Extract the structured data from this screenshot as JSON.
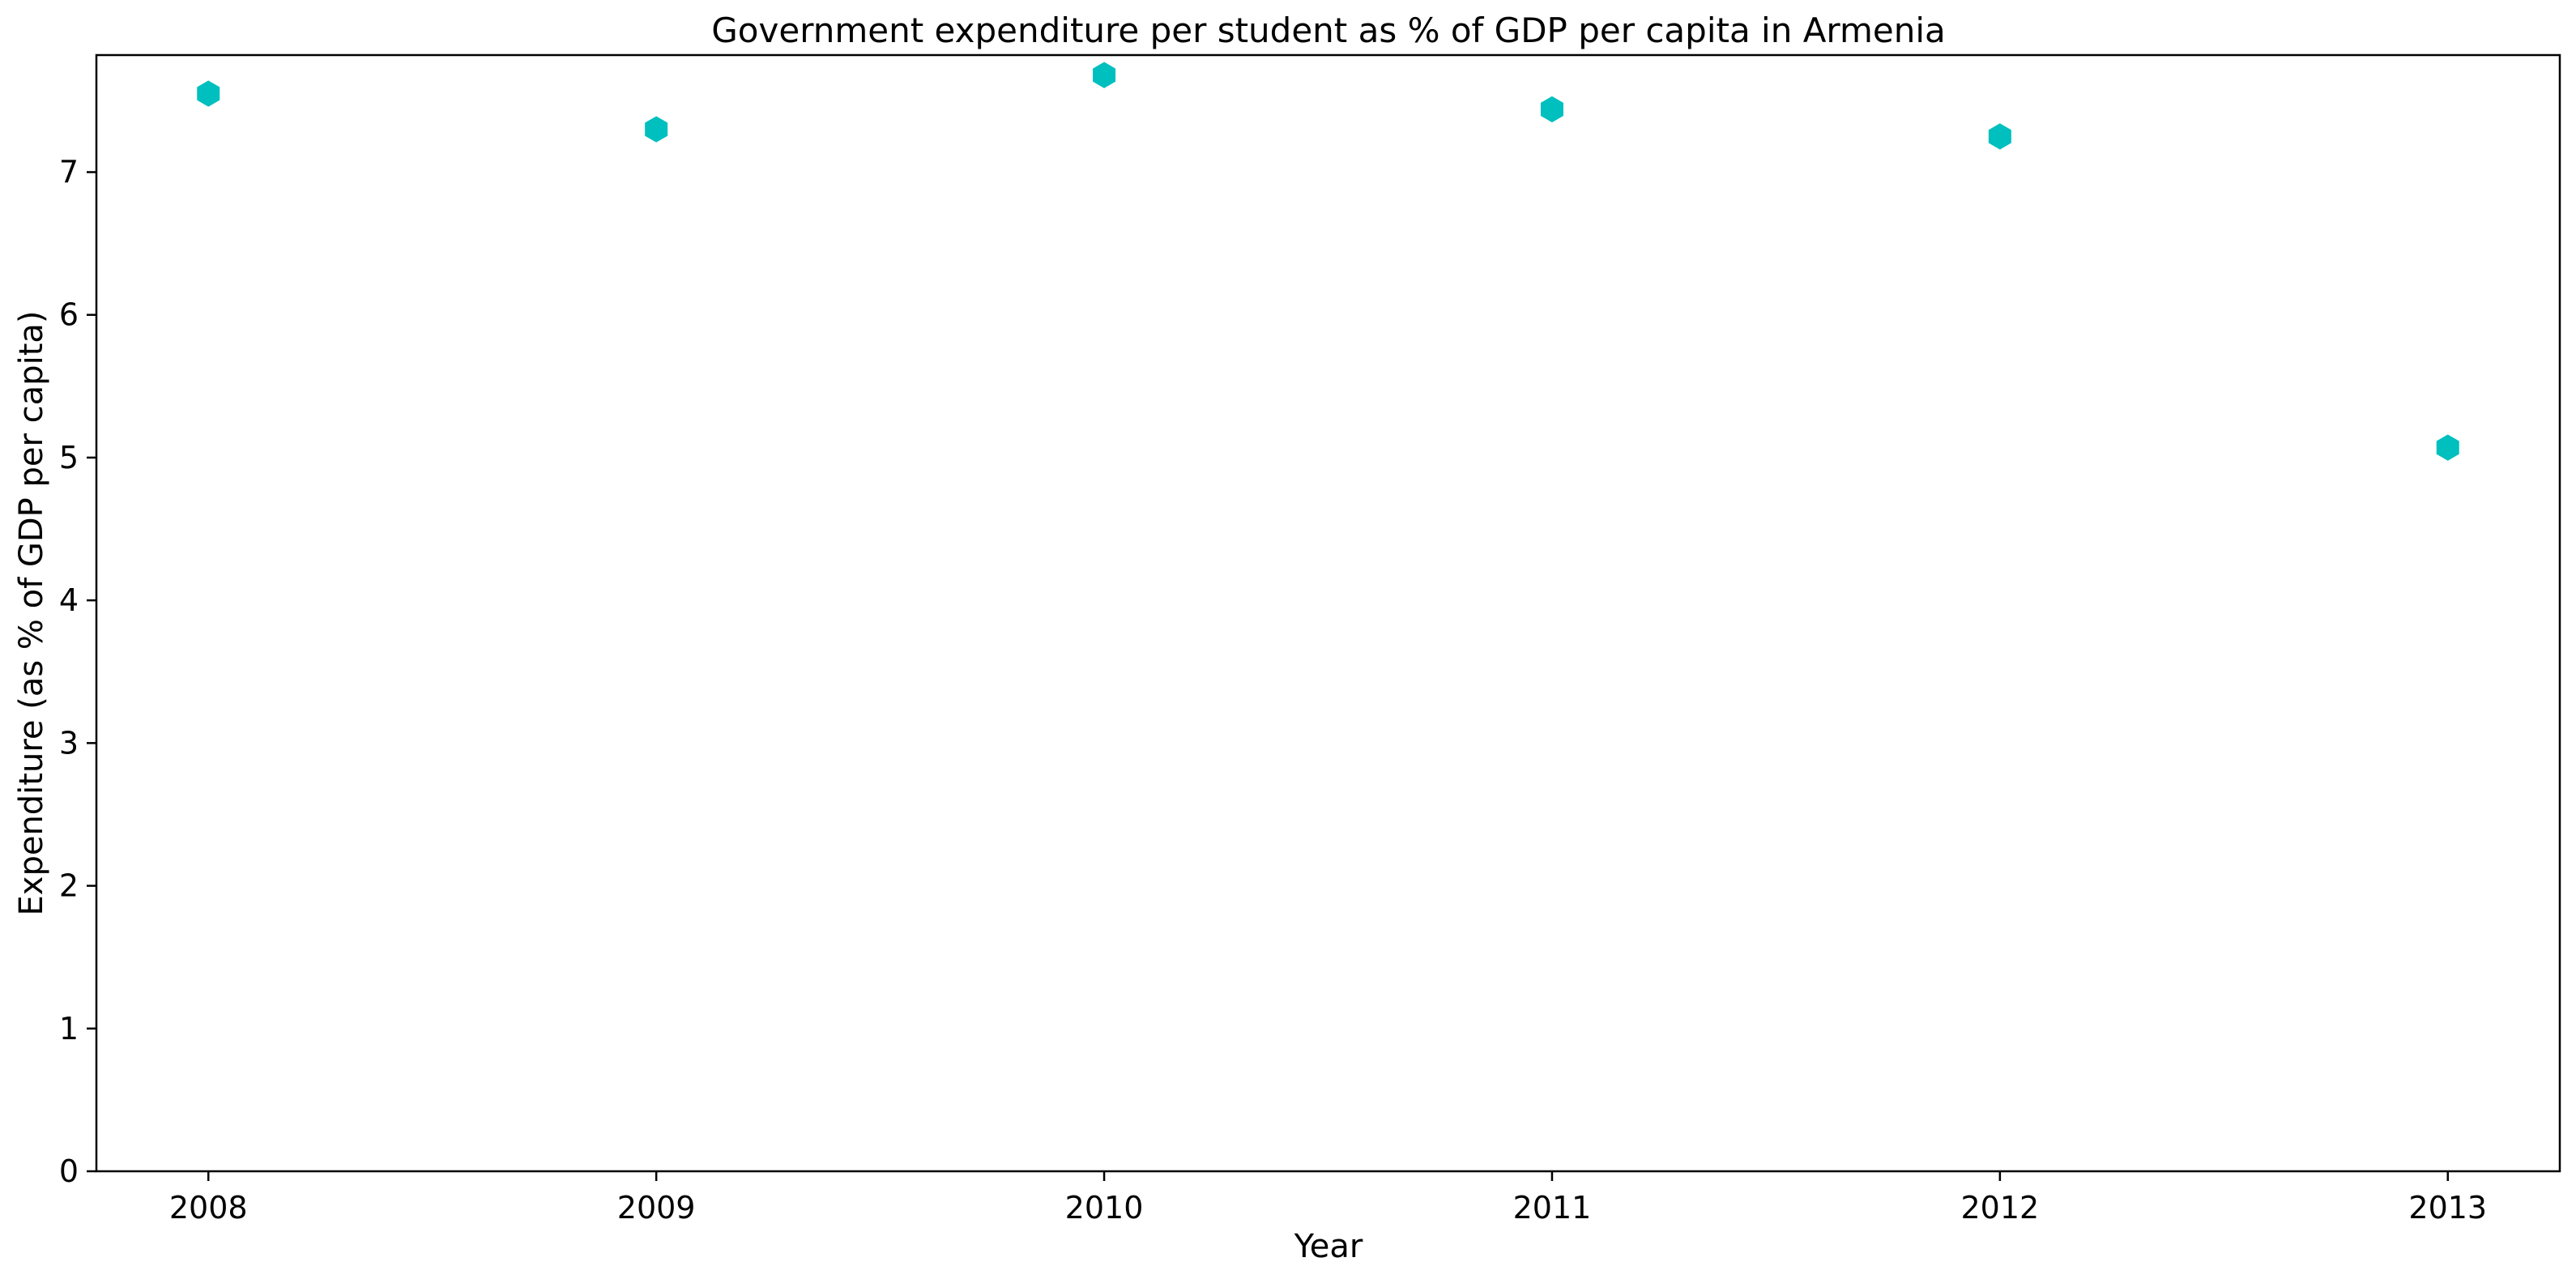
{
  "chart_data": {
    "type": "scatter",
    "title": "Government expenditure per student as % of GDP per capita in Armenia",
    "xlabel": "Year",
    "ylabel": "Expenditure (as % of GDP per capita)",
    "x": [
      2008,
      2009,
      2010,
      2011,
      2012,
      2013
    ],
    "y": [
      7.55,
      7.3,
      7.68,
      7.44,
      7.25,
      5.07
    ],
    "x_ticks": [
      "2008",
      "2009",
      "2010",
      "2011",
      "2012",
      "2013"
    ],
    "y_ticks": [
      "0",
      "1",
      "2",
      "3",
      "4",
      "5",
      "6",
      "7"
    ],
    "xlim": [
      2007.75,
      2013.25
    ],
    "ylim": [
      0,
      7.82
    ],
    "marker": "hexagon",
    "marker_color": "#00bfbf",
    "grid": false,
    "legend": "none"
  }
}
